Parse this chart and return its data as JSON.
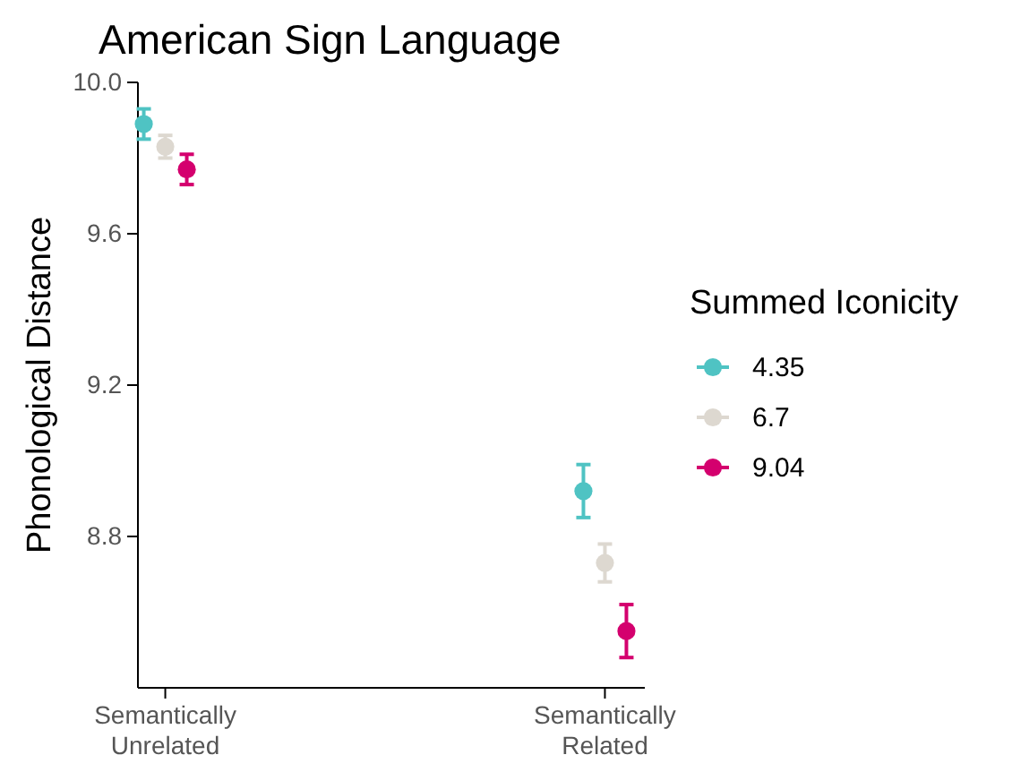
{
  "chart_data": {
    "type": "scatter",
    "title": "American Sign Language",
    "xlabel": null,
    "ylabel": "Phonological Distance",
    "legend_title": "Summed Iconicity",
    "categories": [
      "Semantically\nUnrelated",
      "Semantically\nRelated"
    ],
    "ylim": [
      8.4,
      10.0
    ],
    "yticks": [
      {
        "value": 8.8,
        "label": "8.8"
      },
      {
        "value": 9.2,
        "label": "9.2"
      },
      {
        "value": 9.6,
        "label": "9.6"
      },
      {
        "value": 10.0,
        "label": "10.0"
      }
    ],
    "grid": false,
    "legend": "right",
    "marker": "circle",
    "series": [
      {
        "name": "4.35",
        "color": "#4fc3c3",
        "values": [
          9.89,
          8.92
        ],
        "errors": [
          0.04,
          0.07
        ]
      },
      {
        "name": "6.7",
        "color": "#ddd8d0",
        "values": [
          9.83,
          8.73
        ],
        "errors": [
          0.03,
          0.05
        ]
      },
      {
        "name": "9.04",
        "color": "#d4006e",
        "values": [
          9.77,
          8.55
        ],
        "errors": [
          0.04,
          0.07
        ]
      }
    ]
  }
}
